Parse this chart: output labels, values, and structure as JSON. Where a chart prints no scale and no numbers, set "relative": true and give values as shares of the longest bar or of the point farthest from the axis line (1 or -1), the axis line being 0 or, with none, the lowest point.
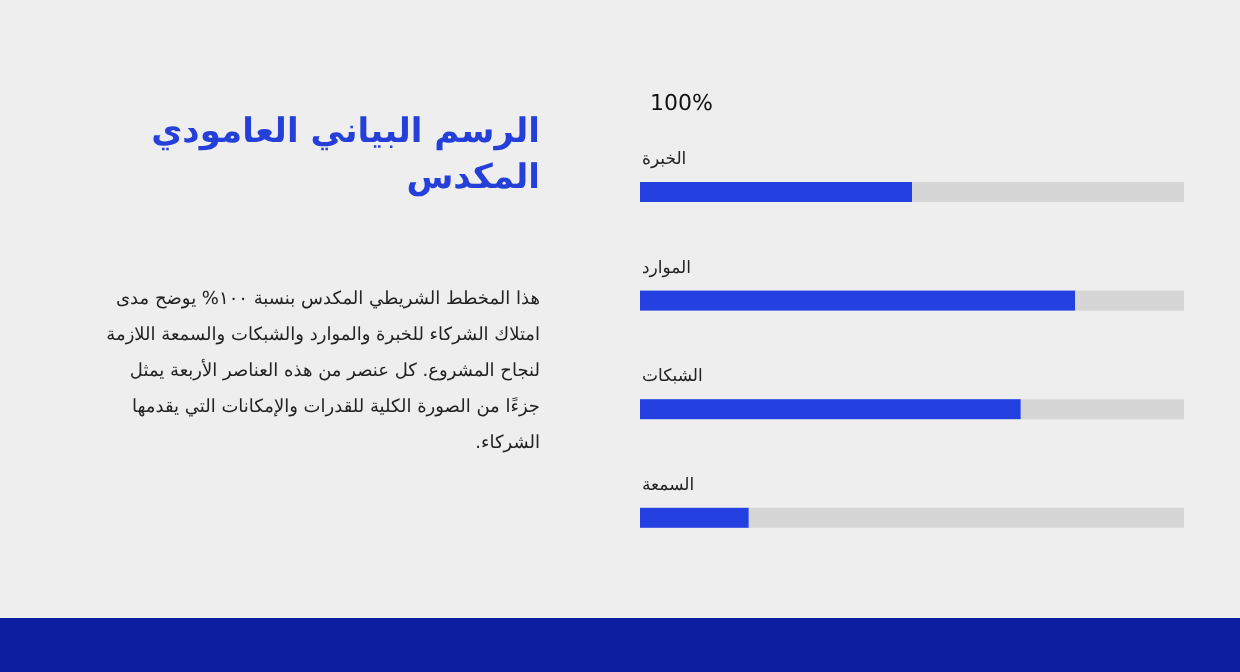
{
  "chart_data": {
    "type": "bar",
    "orientation": "horizontal",
    "stacked": true,
    "relative": true,
    "title": "الرسم البياني العامودي المكدس",
    "annotations": [
      "100%",
      "هذا المخطط الشريطي المكدس بنسبة ١٠٠% يوضح مدى امتلاك الشركاء للخبرة والموارد والشبكات والسمعة اللازمة لنجاح المشروع. كل عنصر من هذه العناصر الأربعة يمثل جزءًا من الصورة الكلية للقدرات والإمكانات التي يقدمها الشركاء."
    ],
    "categories": [
      "الخبرة",
      "الموارد",
      "الشبكات",
      "السمعة"
    ],
    "series": [
      {
        "color": "#2440e0",
        "values": [
          0.5,
          0.8,
          0.7,
          0.2
        ]
      },
      {
        "color": "#d6d6d6",
        "values": [
          0.5,
          0.2,
          0.3,
          0.8
        ]
      }
    ]
  }
}
